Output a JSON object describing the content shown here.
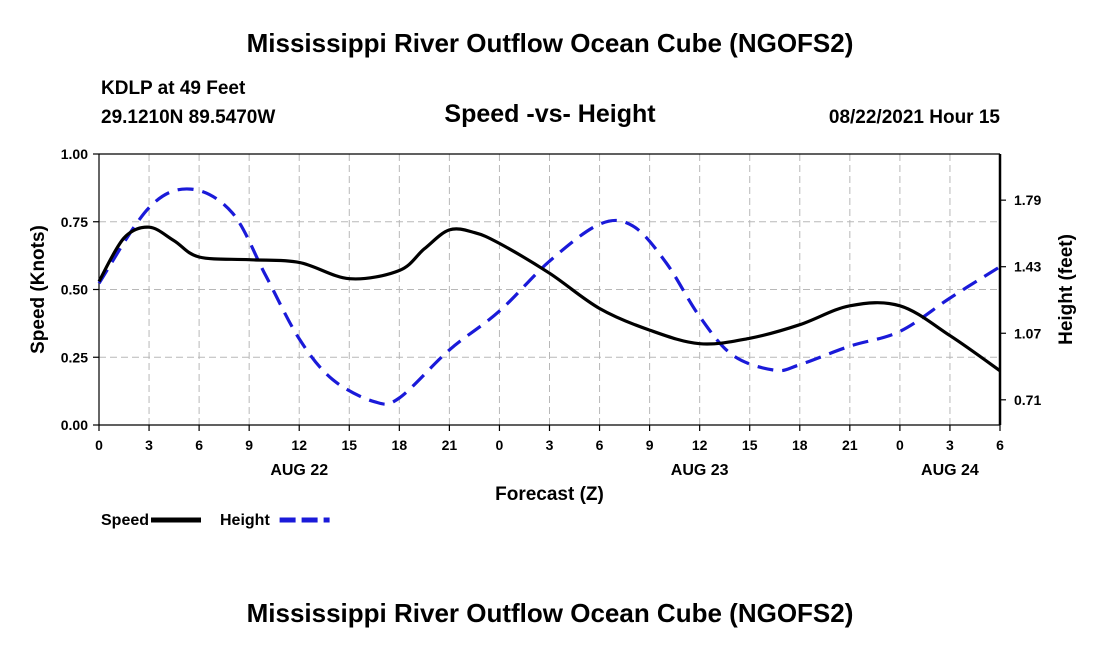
{
  "header": {
    "title_top": "Mississippi River Outflow Ocean Cube (NGOFS2)",
    "title_bottom": "Mississippi River Outflow Ocean Cube (NGOFS2)",
    "station": "KDLP at 49 Feet",
    "coords": "29.1210N  89.5470W",
    "date": "08/22/2021 Hour 15"
  },
  "chart_data": {
    "type": "line",
    "title": "Speed -vs- Height",
    "xlabel": "Forecast (Z)",
    "ylabel_left": "Speed (Knots)",
    "ylabel_right": "Height (feet)",
    "x_range_hours": [
      0,
      54
    ],
    "ylim_left": [
      0,
      1
    ],
    "ylim_right": [
      0.5737,
      2.0397
    ],
    "x_tick_hours": [
      0,
      3,
      6,
      9,
      12,
      15,
      18,
      21,
      24,
      27,
      30,
      33,
      36,
      39,
      42,
      45,
      48,
      51,
      54
    ],
    "x_tick_labels": [
      "0",
      "3",
      "6",
      "9",
      "12",
      "15",
      "18",
      "21",
      "0",
      "3",
      "6",
      "9",
      "12",
      "15",
      "18",
      "21",
      "0",
      "3",
      "6"
    ],
    "date_labels": [
      {
        "label": "AUG 22",
        "hour": 12
      },
      {
        "label": "AUG 23",
        "hour": 36
      },
      {
        "label": "AUG 24",
        "hour": 51
      }
    ],
    "y_left_ticks": [
      "0.00",
      "0.25",
      "0.50",
      "0.75",
      "1.00"
    ],
    "y_left_tick_values": [
      0,
      0.25,
      0.5,
      0.75,
      1.0
    ],
    "y_right_ticks": [
      "0.71",
      "1.07",
      "1.43",
      "1.79"
    ],
    "y_right_tick_values": [
      0.71,
      1.07,
      1.43,
      1.79
    ],
    "grid": true,
    "series": [
      {
        "name": "Speed",
        "axis": "left",
        "color": "#000000",
        "style": "solid",
        "x": [
          0,
          1.5,
          3,
          4.5,
          6,
          9,
          12,
          15,
          18,
          19.5,
          21,
          22.5,
          24,
          27,
          30,
          33,
          36,
          39,
          42,
          45,
          48,
          51,
          54
        ],
        "y": [
          0.53,
          0.69,
          0.73,
          0.68,
          0.62,
          0.61,
          0.6,
          0.54,
          0.57,
          0.65,
          0.72,
          0.71,
          0.67,
          0.56,
          0.43,
          0.35,
          0.3,
          0.32,
          0.37,
          0.44,
          0.44,
          0.33,
          0.2
        ]
      },
      {
        "name": "Height",
        "axis": "right",
        "color": "#1a1ad9",
        "style": "dashed",
        "x": [
          0,
          3,
          5.5,
          8,
          10,
          12,
          14,
          16.5,
          18,
          21,
          24,
          27,
          30,
          32,
          34,
          36,
          38,
          40.5,
          42,
          45,
          48,
          51,
          54
        ],
        "y": [
          1.34,
          1.75,
          1.85,
          1.72,
          1.38,
          1.04,
          0.82,
          0.7,
          0.72,
          0.98,
          1.19,
          1.46,
          1.66,
          1.65,
          1.45,
          1.16,
          0.95,
          0.87,
          0.9,
          1.0,
          1.08,
          1.26,
          1.43
        ]
      }
    ],
    "legend": [
      {
        "label": "Speed",
        "color": "#000000",
        "style": "solid"
      },
      {
        "label": "Height",
        "color": "#1a1ad9",
        "style": "dashed"
      }
    ]
  }
}
